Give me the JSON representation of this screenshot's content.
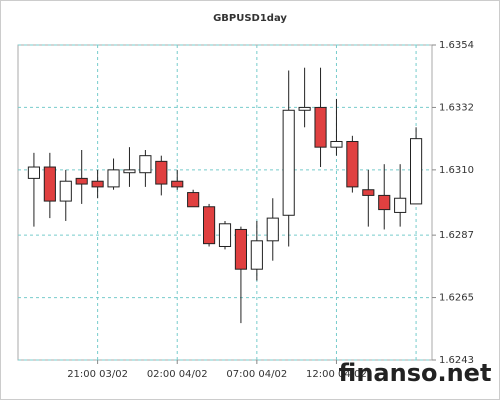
{
  "chart_data": {
    "type": "candlestick",
    "title": "GBPUSD1day",
    "watermark": "finanso.net",
    "categories": [
      null,
      null,
      null,
      null,
      "21:00 03/02",
      null,
      null,
      null,
      null,
      "02:00 04/02",
      null,
      null,
      null,
      null,
      "07:00 04/02",
      null,
      null,
      null,
      null,
      "12:00 04/02",
      null,
      null,
      null,
      null,
      null
    ],
    "open": [
      1.6307,
      1.6311,
      1.6299,
      1.6307,
      1.6306,
      1.6304,
      1.6309,
      1.6309,
      1.6313,
      1.6306,
      1.6302,
      1.6297,
      1.6283,
      1.6289,
      1.6275,
      1.6285,
      1.6294,
      1.6331,
      1.6332,
      1.6318,
      1.632,
      1.6303,
      1.6301,
      1.6295,
      1.6298
    ],
    "high": [
      1.6316,
      1.6316,
      1.631,
      1.6317,
      1.631,
      1.6314,
      1.6318,
      1.6317,
      1.6315,
      1.631,
      1.6303,
      1.6298,
      1.6292,
      1.629,
      1.6292,
      1.63,
      1.6345,
      1.6346,
      1.6346,
      1.6335,
      1.6322,
      1.631,
      1.6312,
      1.6312,
      1.6325
    ],
    "low": [
      1.629,
      1.6293,
      1.6292,
      1.6298,
      1.63,
      1.6303,
      1.6304,
      1.6304,
      1.6301,
      1.6303,
      1.6297,
      1.6283,
      1.6282,
      1.6256,
      1.6271,
      1.6278,
      1.6283,
      1.6325,
      1.6311,
      1.6315,
      1.6302,
      1.629,
      1.6289,
      1.629,
      1.6298
    ],
    "close": [
      1.6311,
      1.6299,
      1.6306,
      1.6305,
      1.6304,
      1.631,
      1.631,
      1.6315,
      1.6305,
      1.6304,
      1.6297,
      1.6284,
      1.6291,
      1.6275,
      1.6285,
      1.6293,
      1.6331,
      1.6332,
      1.6318,
      1.632,
      1.6304,
      1.6301,
      1.6296,
      1.63,
      1.6321
    ],
    "up_color": "#ffffff",
    "down_color": "#e04040",
    "ylim": [
      1.6243,
      1.6354
    ],
    "yticks": [
      1.6243,
      1.6265,
      1.6287,
      {
        "value": 1.631,
        "label": "1.6310"
      },
      1.6332,
      1.6354
    ],
    "grid": true
  }
}
